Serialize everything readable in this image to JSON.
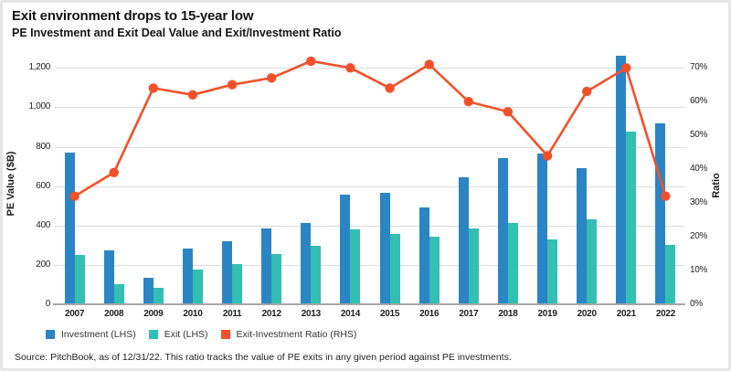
{
  "header": {
    "title": "Exit environment drops to 15-year low",
    "subtitle": "PE Investment and Exit Deal Value and Exit/Investment Ratio"
  },
  "chart_data": {
    "type": "bar",
    "subtype": "combo-bar-line-dual-axis",
    "title": "Exit environment drops to 15-year low",
    "subtitle": "PE Investment and Exit Deal Value and Exit/Investment Ratio",
    "categories": [
      "2007",
      "2008",
      "2009",
      "2010",
      "2011",
      "2012",
      "2013",
      "2014",
      "2015",
      "2016",
      "2017",
      "2018",
      "2019",
      "2020",
      "2021",
      "2022"
    ],
    "series": [
      {
        "name": "Investment (LHS)",
        "kind": "bar",
        "axis": "left",
        "color": "#2b85c4",
        "values": [
          770,
          275,
          135,
          285,
          320,
          385,
          415,
          555,
          565,
          490,
          645,
          740,
          765,
          690,
          1260,
          920
        ]
      },
      {
        "name": "Exit (LHS)",
        "kind": "bar",
        "axis": "left",
        "color": "#33bfb2",
        "values": [
          250,
          100,
          85,
          175,
          205,
          255,
          295,
          380,
          355,
          345,
          385,
          415,
          330,
          430,
          875,
          300
        ]
      },
      {
        "name": "Exit-Investment Ratio (RHS)",
        "kind": "line",
        "axis": "right",
        "color": "#f0512b",
        "values_pct": [
          32,
          39,
          64,
          62,
          65,
          67,
          72,
          70,
          64,
          71,
          60,
          57,
          44,
          63,
          70,
          32
        ]
      }
    ],
    "left_axis": {
      "label": "PE Value ($B)",
      "tick_values": [
        0,
        200,
        400,
        600,
        800,
        1000,
        1200
      ],
      "tick_labels": [
        "0",
        "200",
        "400",
        "600",
        "800",
        "1,000",
        "1,200"
      ],
      "plot_max": 1280
    },
    "right_axis": {
      "label": "Ratio",
      "tick_values_pct": [
        0,
        10,
        20,
        30,
        40,
        50,
        60,
        70
      ],
      "tick_labels": [
        "0%",
        "10%",
        "20%",
        "30%",
        "40%",
        "50%",
        "60%",
        "70%"
      ],
      "max_pct": 70,
      "pct70_aligns_to_left_value": 1200
    },
    "grid": "horizontal",
    "legend_position": "bottom-left"
  },
  "legend": {
    "items": [
      {
        "label": "Investment (LHS)",
        "color": "#2b85c4"
      },
      {
        "label": "Exit (LHS)",
        "color": "#33bfb2"
      },
      {
        "label": "Exit-Investment Ratio (RHS)",
        "color": "#f0512b"
      }
    ]
  },
  "footer": {
    "source": "Source: PitchBook, as of 12/31/22. This ratio tracks the value of PE exits in any given period against PE investments."
  },
  "colors": {
    "investment_bar": "#2b85c4",
    "exit_bar": "#33bfb2",
    "ratio_line": "#f0512b",
    "gridline": "#dcdcdc",
    "axis_line": "#a6a6a6",
    "text": "#141414"
  }
}
